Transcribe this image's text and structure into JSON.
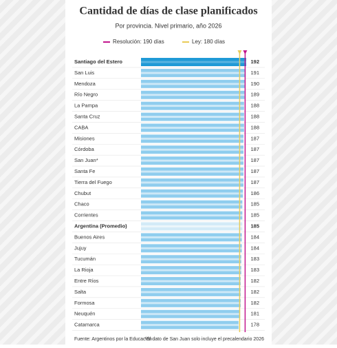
{
  "chart_data": {
    "type": "bar",
    "orientation": "horizontal",
    "title": "Cantidad de días de clase planificados",
    "subtitle": "Por provincia. Nivel primario, año 2026",
    "categories": [
      "Santiago del Estero",
      "San Luis",
      "Mendoza",
      "Río Negro",
      "La Pampa",
      "Santa Cruz",
      "CABA",
      "Misiones",
      "Córdoba",
      "San Juan*",
      "Santa Fe",
      "Tierra del Fuego",
      "Chubut",
      "Chaco",
      "Corrientes",
      "Argentina (Promedio)",
      "Buenos Aires",
      "Jujuy",
      "Tucumán",
      "La Rioja",
      "Entre Ríos",
      "Salta",
      "Formosa",
      "Neuquén",
      "Catamarca"
    ],
    "values": [
      192,
      191,
      190,
      189,
      188,
      188,
      188,
      187,
      187,
      187,
      187,
      187,
      186,
      185,
      185,
      185,
      184,
      184,
      183,
      183,
      182,
      182,
      182,
      181,
      178
    ],
    "color": "#8fcdee",
    "highlight_color": "#1f9ad6",
    "average_color": "#d3ebf7",
    "highlight_index": 0,
    "average_index": 15,
    "xlim": [
      0,
      192
    ],
    "reference_lines": [
      {
        "name": "Resolución: 190 días",
        "value": 190,
        "color": "#c2168d"
      },
      {
        "name": "Ley: 180 días",
        "value": 180,
        "color": "#e9cb57"
      }
    ],
    "source": "Fuente: Argentinos por la Educación",
    "note": "*El dato de San Juan solo incluye el precalendario 2026"
  }
}
